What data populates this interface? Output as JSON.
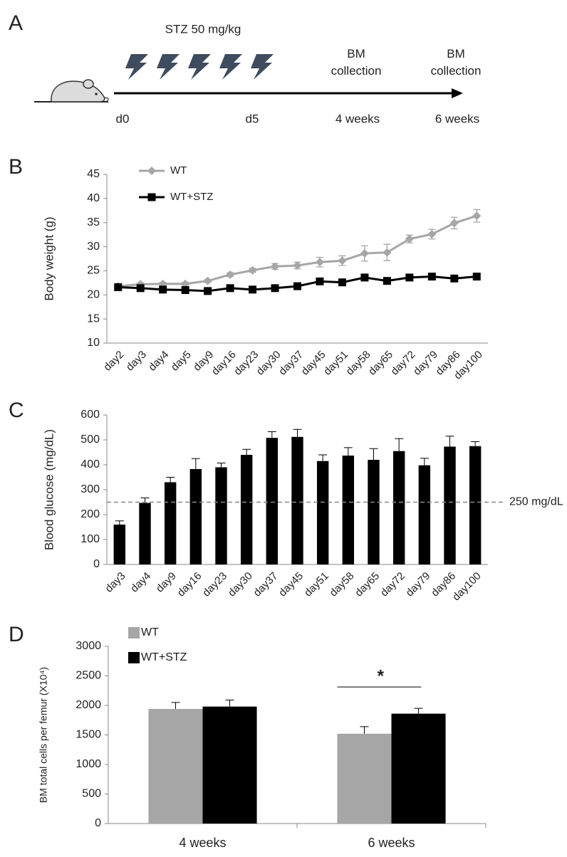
{
  "panel_labels": [
    "A",
    "B",
    "C",
    "D"
  ],
  "diagram": {
    "treatment": "STZ 50 mg/kg",
    "collection_labels": [
      [
        "BM",
        "collection"
      ],
      [
        "BM",
        "collection"
      ]
    ],
    "timepoints": [
      "d0",
      "d5",
      "4 weeks",
      "6 weeks"
    ]
  },
  "chart_data": [
    {
      "type": "line",
      "categories": [
        "day2",
        "day3",
        "day4",
        "day5",
        "day9",
        "day16",
        "day23",
        "day30",
        "day37",
        "day45",
        "day51",
        "day58",
        "day65",
        "day72",
        "day79",
        "day86",
        "day100"
      ],
      "ylabel": "Body weight (g)",
      "ylim": [
        10,
        45
      ],
      "yticks": [
        10,
        15,
        20,
        25,
        30,
        35,
        40,
        45
      ],
      "legend": "upper left",
      "series": [
        {
          "name": "WT",
          "color": "#a6a6a6",
          "marker": "diamond",
          "values": [
            21.8,
            22.2,
            22.3,
            22.3,
            22.9,
            24.2,
            25.1,
            25.9,
            26.1,
            26.8,
            27.1,
            28.6,
            28.8,
            31.6,
            32.6,
            34.9,
            36.4
          ],
          "errors": [
            0.3,
            0.3,
            0.3,
            0.3,
            0.3,
            0.4,
            0.4,
            0.6,
            0.7,
            1.0,
            1.0,
            1.6,
            1.7,
            0.8,
            1.0,
            1.2,
            1.3
          ]
        },
        {
          "name": "WT+STZ",
          "color": "#000000",
          "marker": "square",
          "values": [
            21.6,
            21.4,
            21.1,
            21.0,
            20.8,
            21.4,
            21.1,
            21.4,
            21.8,
            22.8,
            22.6,
            23.6,
            22.9,
            23.6,
            23.8,
            23.4,
            23.8
          ],
          "errors": [
            0.3,
            0.3,
            0.3,
            0.3,
            0.3,
            0.3,
            0.3,
            0.3,
            0.3,
            0.4,
            0.4,
            0.4,
            0.4,
            0.4,
            0.4,
            0.4,
            0.4
          ]
        }
      ]
    },
    {
      "type": "bar",
      "categories": [
        "day3",
        "day4",
        "day9",
        "day16",
        "day23",
        "day30",
        "day37",
        "day45",
        "day51",
        "day58",
        "day65",
        "day72",
        "day79",
        "day86",
        "day100"
      ],
      "ylabel": "Blood glucose (mg/dL)",
      "ylim": [
        0,
        600
      ],
      "yticks": [
        0,
        100,
        200,
        300,
        400,
        500,
        600
      ],
      "color": "#000000",
      "values": [
        160,
        247,
        330,
        383,
        390,
        440,
        508,
        512,
        415,
        437,
        420,
        455,
        398,
        473,
        475
      ],
      "errors": [
        15,
        20,
        20,
        42,
        17,
        22,
        25,
        30,
        25,
        32,
        45,
        50,
        28,
        42,
        18
      ],
      "reference_line": {
        "value": 250,
        "label": "250 mg/dL"
      }
    },
    {
      "type": "bar",
      "categories": [
        "4 weeks",
        "6 weeks"
      ],
      "ylabel": "BM total cells per femur (X10⁴)",
      "ylim": [
        0,
        3000
      ],
      "yticks": [
        0,
        500,
        1000,
        1500,
        2000,
        2500,
        3000
      ],
      "legend": "upper left",
      "series": [
        {
          "name": "WT",
          "color": "#a6a6a6",
          "values": [
            1940,
            1520
          ],
          "errors": [
            110,
            120
          ]
        },
        {
          "name": "WT+STZ",
          "color": "#000000",
          "values": [
            1980,
            1860
          ],
          "errors": [
            110,
            90
          ]
        }
      ],
      "significance": "*"
    }
  ]
}
